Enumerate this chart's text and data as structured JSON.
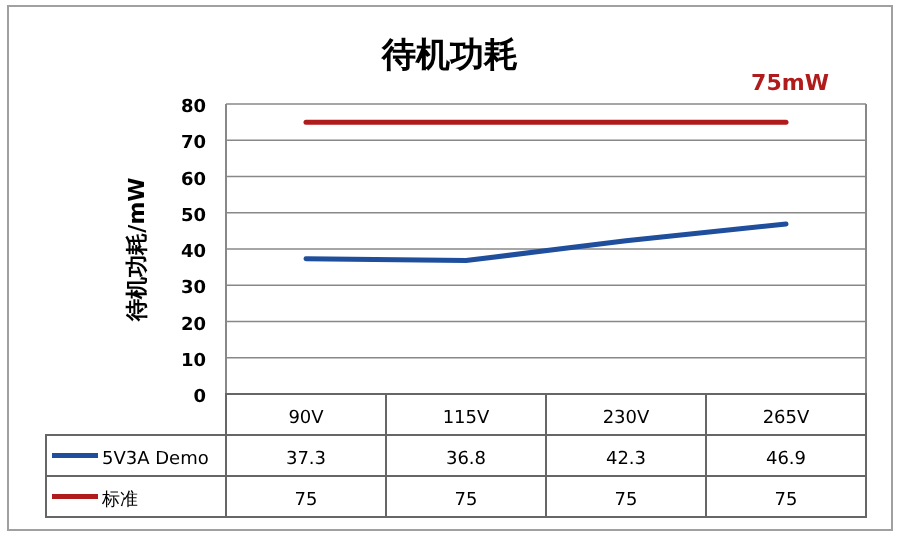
{
  "chart_data": {
    "type": "line",
    "title": "待机功耗",
    "ylabel": "待机功耗/mW",
    "categories": [
      "90V",
      "115V",
      "230V",
      "265V"
    ],
    "series": [
      {
        "name": "5V3A Demo",
        "color": "#1f4e9c",
        "values": [
          37.3,
          36.8,
          42.3,
          46.9
        ]
      },
      {
        "name": "标准",
        "color": "#b01c1c",
        "values": [
          75,
          75,
          75,
          75
        ]
      }
    ],
    "annotations": [
      "75mW"
    ],
    "ylim": [
      0,
      80
    ],
    "yticks": [
      0,
      10,
      20,
      30,
      40,
      50,
      60,
      70,
      80
    ],
    "grid": "y",
    "legend": "bottom",
    "data_labels": true,
    "marker": "none",
    "line_style": "solid"
  }
}
